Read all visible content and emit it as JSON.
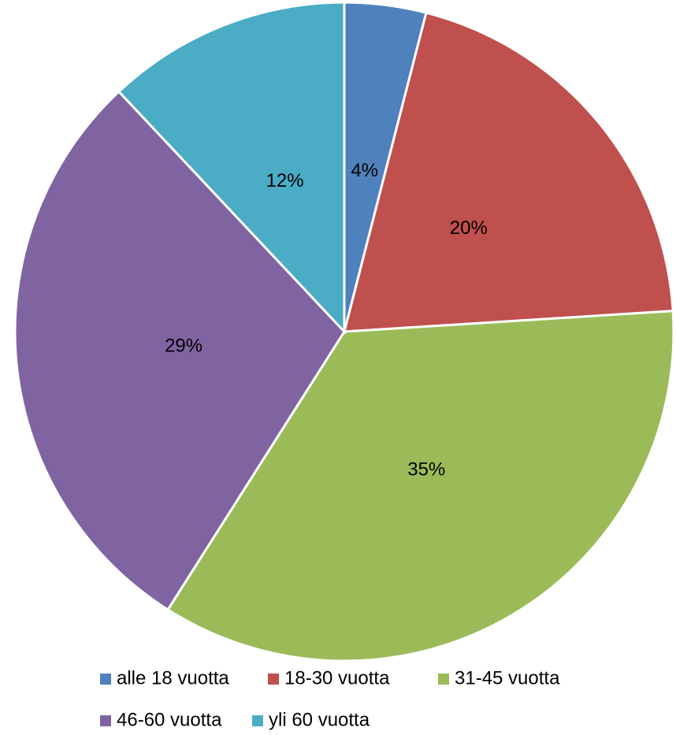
{
  "chart_data": {
    "type": "pie",
    "categories": [
      "alle 18 vuotta",
      "18-30 vuotta",
      "31-45 vuotta",
      "46-60 vuotta",
      "yli 60 vuotta"
    ],
    "values": [
      4,
      20,
      35,
      29,
      12
    ],
    "value_labels": [
      "4%",
      "20%",
      "35%",
      "29%",
      "12%"
    ],
    "colors": [
      "#4f81bd",
      "#c0504d",
      "#9bbb59",
      "#8064a2",
      "#4bacc6"
    ],
    "legend": "bottom"
  }
}
